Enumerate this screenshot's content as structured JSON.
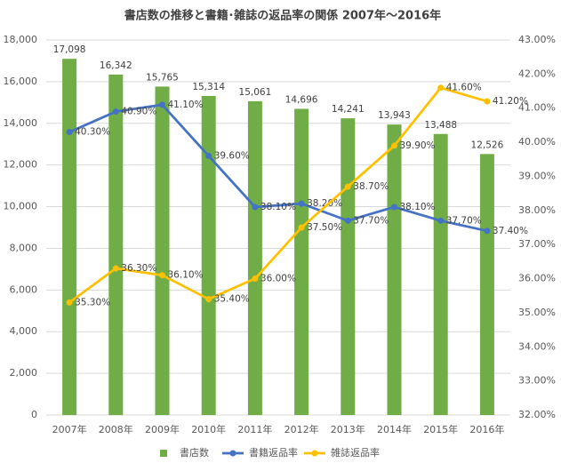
{
  "chart_data": {
    "type": "bar",
    "title": "書店数の推移と書籍･雑誌の返品率の関係 2007年～2016年",
    "categories": [
      "2007年",
      "2008年",
      "2009年",
      "2010年",
      "2011年",
      "2012年",
      "2013年",
      "2014年",
      "2015年",
      "2016年"
    ],
    "series": [
      {
        "name": "書店数",
        "type": "bar",
        "color": "#70ad47",
        "values": [
          17098,
          16342,
          15765,
          15314,
          15061,
          14696,
          14241,
          13943,
          13488,
          12526
        ],
        "value_labels": [
          "17,098",
          "16,342",
          "15,765",
          "15,314",
          "15,061",
          "14,696",
          "14,241",
          "13,943",
          "13,488",
          "12,526"
        ]
      },
      {
        "name": "書籍返品率",
        "type": "line",
        "axis": "y2",
        "color": "#4472c4",
        "values": [
          40.3,
          40.9,
          41.1,
          39.6,
          38.1,
          38.2,
          37.7,
          38.1,
          37.7,
          37.4
        ],
        "value_labels": [
          "40.30%",
          "40.90%",
          "41.10%",
          "39.60%",
          "38.10%",
          "38.20%",
          "37.70%",
          "38.10%",
          "37.70%",
          "37.40%"
        ]
      },
      {
        "name": "雑誌返品率",
        "type": "line",
        "axis": "y2",
        "color": "#ffc000",
        "values": [
          35.3,
          36.3,
          36.1,
          35.4,
          36.0,
          37.5,
          38.7,
          39.9,
          41.6,
          41.2
        ],
        "value_labels": [
          "35.30%",
          "36.30%",
          "36.10%",
          "35.40%",
          "36.00%",
          "37.50%",
          "38.70%",
          "39.90%",
          "41.60%",
          "41.20%"
        ]
      }
    ],
    "ylim": [
      0,
      18000
    ],
    "yticks": [
      0,
      {
        "value": 2000,
        "label": "2,000"
      },
      {
        "value": 4000,
        "label": "4,000"
      },
      {
        "value": 6000,
        "label": "6,000"
      },
      {
        "value": 8000,
        "label": "8,000"
      },
      {
        "value": 10000,
        "label": "10,000"
      },
      {
        "value": 12000,
        "label": "12,000"
      },
      {
        "value": 14000,
        "label": "14,000"
      },
      {
        "value": 16000,
        "label": "16,000"
      },
      {
        "value": 18000,
        "label": "18,000"
      }
    ],
    "y2lim": [
      32,
      43
    ],
    "y2ticks": [
      {
        "value": 32,
        "label": "32.00%"
      },
      {
        "value": 33,
        "label": "33.00%"
      },
      {
        "value": 34,
        "label": "34.00%"
      },
      {
        "value": 35,
        "label": "35.00%"
      },
      {
        "value": 36,
        "label": "36.00%"
      },
      {
        "value": 37,
        "label": "37.00%"
      },
      {
        "value": 38,
        "label": "38.00%"
      },
      {
        "value": 39,
        "label": "39.00%"
      },
      {
        "value": 40,
        "label": "40.00%"
      },
      {
        "value": 41,
        "label": "41.00%"
      },
      {
        "value": 42,
        "label": "42.00%"
      },
      {
        "value": 43,
        "label": "43.00%"
      }
    ],
    "grid": true,
    "legend": "bottom"
  }
}
